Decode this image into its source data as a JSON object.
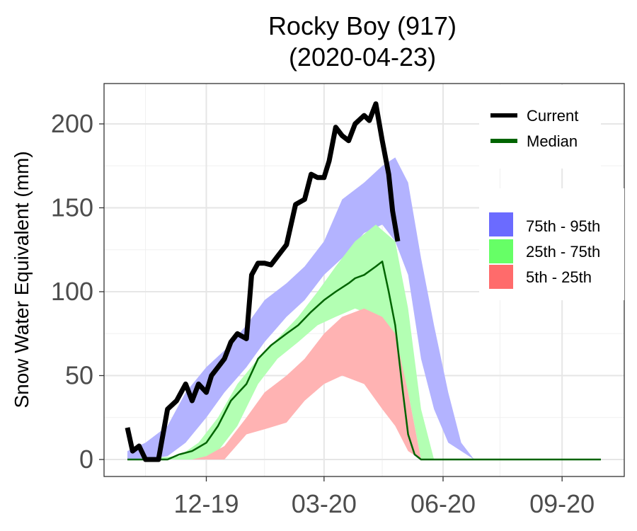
{
  "chart_data": {
    "type": "area",
    "title": "Rocky Boy (917)",
    "subtitle": "(2020-04-23)",
    "xlabel": "",
    "ylabel": "Snow Water Equivalent (mm)",
    "x_ticks": [
      "12-19",
      "03-20",
      "06-20",
      "09-20"
    ],
    "y_ticks": [
      0,
      50,
      100,
      150,
      200
    ],
    "ylim": [
      -10,
      225
    ],
    "grid": true,
    "legend": {
      "position": "right",
      "line_items": [
        {
          "label": "Current",
          "color": "#000000"
        },
        {
          "label": "Median",
          "color": "#006400"
        }
      ],
      "band_items": [
        {
          "label": "75th - 95th",
          "color": "#6b6bff"
        },
        {
          "label": "25th - 75th",
          "color": "#66ff66"
        },
        {
          "label": "5th - 25th",
          "color": "#ff6b6b"
        }
      ]
    },
    "bands": {
      "5th - 25th": {
        "x": [
          "2019-10-01",
          "2019-11-20",
          "2019-12-01",
          "2019-12-15",
          "2020-01-01",
          "2020-01-15",
          "2020-02-01",
          "2020-02-15",
          "2020-03-01",
          "2020-03-15",
          "2020-04-01",
          "2020-04-15",
          "2020-04-25",
          "2020-05-05",
          "2020-05-15"
        ],
        "low": [
          0,
          0,
          0,
          0,
          15,
          18,
          22,
          35,
          45,
          50,
          45,
          30,
          20,
          5,
          0
        ],
        "high": [
          0,
          0,
          2,
          8,
          25,
          40,
          50,
          60,
          75,
          85,
          90,
          85,
          75,
          40,
          0
        ]
      },
      "25th - 75th": {
        "x": [
          "2019-10-01",
          "2019-11-10",
          "2019-11-25",
          "2019-12-10",
          "2019-12-25",
          "2020-01-10",
          "2020-01-25",
          "2020-02-10",
          "2020-02-25",
          "2020-03-10",
          "2020-03-25",
          "2020-04-10",
          "2020-04-25",
          "2020-05-05",
          "2020-05-15",
          "2020-05-25"
        ],
        "low": [
          0,
          0,
          0,
          5,
          20,
          45,
          60,
          70,
          80,
          85,
          90,
          85,
          70,
          40,
          0,
          0
        ],
        "high": [
          0,
          2,
          10,
          25,
          45,
          60,
          72,
          85,
          100,
          115,
          130,
          140,
          130,
          90,
          30,
          0
        ]
      },
      "75th - 95th": {
        "x": [
          "2019-10-01",
          "2019-10-15",
          "2019-11-01",
          "2019-11-15",
          "2019-12-01",
          "2019-12-15",
          "2020-01-01",
          "2020-01-15",
          "2020-02-01",
          "2020-02-15",
          "2020-03-01",
          "2020-03-15",
          "2020-04-01",
          "2020-04-15",
          "2020-04-25",
          "2020-05-05",
          "2020-05-15",
          "2020-05-25",
          "2020-06-05",
          "2020-06-15",
          "2020-06-25"
        ],
        "low": [
          0,
          0,
          2,
          10,
          25,
          40,
          55,
          70,
          85,
          95,
          110,
          120,
          135,
          140,
          130,
          110,
          60,
          30,
          10,
          5,
          0
        ],
        "high": [
          5,
          10,
          20,
          40,
          55,
          65,
          80,
          95,
          105,
          115,
          130,
          155,
          165,
          175,
          180,
          165,
          120,
          80,
          40,
          10,
          0
        ]
      }
    },
    "series": [
      {
        "name": "Current",
        "color": "#000000",
        "x": [
          "2019-10-01",
          "2019-10-05",
          "2019-10-10",
          "2019-10-15",
          "2019-10-20",
          "2019-10-25",
          "2019-11-01",
          "2019-11-08",
          "2019-11-15",
          "2019-11-20",
          "2019-11-25",
          "2019-12-01",
          "2019-12-05",
          "2019-12-10",
          "2019-12-15",
          "2019-12-20",
          "2019-12-25",
          "2020-01-01",
          "2020-01-05",
          "2020-01-10",
          "2020-01-15",
          "2020-01-20",
          "2020-01-25",
          "2020-02-01",
          "2020-02-08",
          "2020-02-15",
          "2020-02-20",
          "2020-02-25",
          "2020-03-01",
          "2020-03-05",
          "2020-03-10",
          "2020-03-15",
          "2020-03-20",
          "2020-03-25",
          "2020-04-01",
          "2020-04-05",
          "2020-04-10",
          "2020-04-15",
          "2020-04-20",
          "2020-04-23",
          "2020-04-27"
        ],
        "values": [
          19,
          5,
          8,
          0,
          0,
          0,
          30,
          35,
          45,
          35,
          45,
          40,
          50,
          55,
          60,
          70,
          75,
          72,
          110,
          117,
          117,
          116,
          121,
          128,
          152,
          155,
          170,
          168,
          168,
          178,
          198,
          193,
          190,
          200,
          205,
          202,
          212,
          190,
          170,
          148,
          130
        ]
      },
      {
        "name": "Median",
        "color": "#006400",
        "x": [
          "2019-10-01",
          "2019-10-15",
          "2019-11-01",
          "2019-11-10",
          "2019-11-20",
          "2019-12-01",
          "2019-12-10",
          "2019-12-20",
          "2020-01-01",
          "2020-01-10",
          "2020-01-20",
          "2020-02-01",
          "2020-02-10",
          "2020-02-20",
          "2020-03-01",
          "2020-03-10",
          "2020-03-20",
          "2020-03-25",
          "2020-04-01",
          "2020-04-10",
          "2020-04-15",
          "2020-04-20",
          "2020-04-25",
          "2020-05-01",
          "2020-05-05",
          "2020-05-10",
          "2020-05-15",
          "2020-10-01"
        ],
        "values": [
          0,
          0,
          0,
          3,
          5,
          10,
          20,
          35,
          45,
          60,
          68,
          75,
          80,
          88,
          95,
          100,
          105,
          108,
          110,
          115,
          118,
          100,
          80,
          40,
          15,
          3,
          0,
          0
        ]
      }
    ]
  }
}
